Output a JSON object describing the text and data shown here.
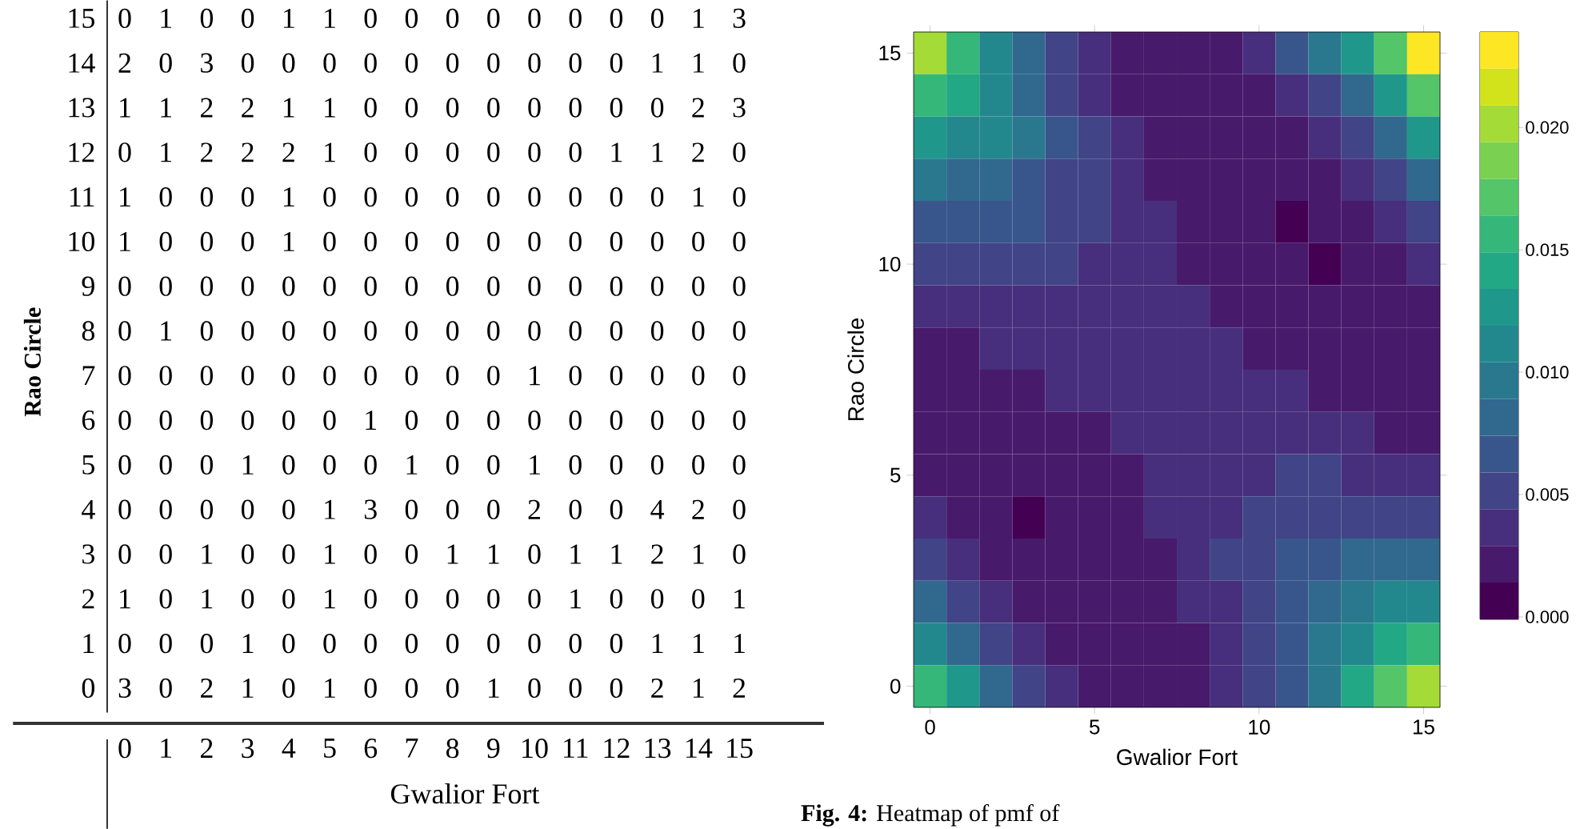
{
  "chart_data": [
    {
      "type": "heatmap",
      "xlabel": "Gwalior Fort",
      "ylabel": "Rao Circle",
      "data_labels": true,
      "categories": [
        "0",
        "1",
        "2",
        "3",
        "4",
        "5",
        "6",
        "7",
        "8",
        "9",
        "10",
        "11",
        "12",
        "13",
        "14",
        "15"
      ],
      "y_categories": [
        "15",
        "14",
        "13",
        "12",
        "11",
        "10",
        "9",
        "8",
        "7",
        "6",
        "5",
        "4",
        "3",
        "2",
        "1",
        "0"
      ],
      "cells": [
        [
          0,
          1,
          0,
          0,
          1,
          1,
          0,
          0,
          0,
          0,
          0,
          0,
          0,
          0,
          1,
          3
        ],
        [
          2,
          0,
          3,
          0,
          0,
          0,
          0,
          0,
          0,
          0,
          0,
          0,
          0,
          1,
          1,
          0
        ],
        [
          1,
          1,
          2,
          2,
          1,
          1,
          0,
          0,
          0,
          0,
          0,
          0,
          0,
          0,
          2,
          3
        ],
        [
          0,
          1,
          2,
          2,
          2,
          1,
          0,
          0,
          0,
          0,
          0,
          0,
          1,
          1,
          2,
          0
        ],
        [
          1,
          0,
          0,
          0,
          1,
          0,
          0,
          0,
          0,
          0,
          0,
          0,
          0,
          0,
          1,
          0
        ],
        [
          1,
          0,
          0,
          0,
          1,
          0,
          0,
          0,
          0,
          0,
          0,
          0,
          0,
          0,
          0,
          0
        ],
        [
          0,
          0,
          0,
          0,
          0,
          0,
          0,
          0,
          0,
          0,
          0,
          0,
          0,
          0,
          0,
          0
        ],
        [
          0,
          1,
          0,
          0,
          0,
          0,
          0,
          0,
          0,
          0,
          0,
          0,
          0,
          0,
          0,
          0
        ],
        [
          0,
          0,
          0,
          0,
          0,
          0,
          0,
          0,
          0,
          0,
          1,
          0,
          0,
          0,
          0,
          0
        ],
        [
          0,
          0,
          0,
          0,
          0,
          0,
          1,
          0,
          0,
          0,
          0,
          0,
          0,
          0,
          0,
          0
        ],
        [
          0,
          0,
          0,
          1,
          0,
          0,
          0,
          1,
          0,
          0,
          1,
          0,
          0,
          0,
          0,
          0
        ],
        [
          0,
          0,
          0,
          0,
          0,
          1,
          3,
          0,
          0,
          0,
          2,
          0,
          0,
          4,
          2,
          0
        ],
        [
          0,
          0,
          1,
          0,
          0,
          1,
          0,
          0,
          1,
          1,
          0,
          1,
          1,
          2,
          1,
          0
        ],
        [
          1,
          0,
          1,
          0,
          0,
          1,
          0,
          0,
          0,
          0,
          0,
          1,
          0,
          0,
          0,
          1
        ],
        [
          0,
          0,
          0,
          1,
          0,
          0,
          0,
          0,
          0,
          0,
          0,
          0,
          0,
          1,
          1,
          1
        ],
        [
          3,
          0,
          2,
          1,
          0,
          1,
          0,
          0,
          0,
          1,
          0,
          0,
          0,
          2,
          1,
          2
        ]
      ]
    },
    {
      "type": "heatmap",
      "xlabel": "Gwalior Fort",
      "ylabel": "Rao Circle",
      "categories": [
        "0",
        null,
        null,
        null,
        null,
        "5",
        null,
        null,
        null,
        null,
        "10",
        null,
        null,
        null,
        null,
        "15"
      ],
      "y_categories": [
        "15",
        null,
        null,
        null,
        null,
        "10",
        null,
        null,
        null,
        null,
        "5",
        null,
        null,
        null,
        null,
        "0"
      ],
      "clim": [
        -0.0001,
        0.0239
      ],
      "cticks": [
        {
          "value": 0,
          "label": "0.000"
        },
        {
          "value": 0.005,
          "label": "0.005"
        },
        {
          "value": 0.01,
          "label": "0.010"
        },
        {
          "value": 0.015,
          "label": "0.015"
        },
        {
          "value": 0.02,
          "label": "0.020"
        }
      ],
      "annotations": [
        "**Fig. 4:** Heatmap of pmf of"
      ],
      "cells": [
        [
          0.0202,
          0.0157,
          0.0112,
          0.0082,
          0.0052,
          0.0037,
          0.0022,
          0.0022,
          0.0022,
          0.0022,
          0.0037,
          0.0067,
          0.0097,
          0.0127,
          0.0172,
          0.0232
        ],
        [
          0.0157,
          0.0142,
          0.0112,
          0.0082,
          0.0052,
          0.0037,
          0.0022,
          0.0022,
          0.0022,
          0.0022,
          0.0022,
          0.0037,
          0.0052,
          0.0082,
          0.0127,
          0.0172
        ],
        [
          0.0127,
          0.0112,
          0.0112,
          0.0097,
          0.0067,
          0.0052,
          0.0037,
          0.0022,
          0.0022,
          0.0022,
          0.0022,
          0.0022,
          0.0037,
          0.0052,
          0.0082,
          0.0127
        ],
        [
          0.0097,
          0.0082,
          0.0082,
          0.0067,
          0.0052,
          0.0052,
          0.0037,
          0.0022,
          0.0022,
          0.0022,
          0.0022,
          0.0022,
          0.0022,
          0.0037,
          0.0052,
          0.0082
        ],
        [
          0.0067,
          0.0067,
          0.0067,
          0.0067,
          0.0052,
          0.0052,
          0.0037,
          0.0037,
          0.0022,
          0.0022,
          0.0022,
          0.0007,
          0.0022,
          0.0022,
          0.0037,
          0.0052
        ],
        [
          0.0052,
          0.0052,
          0.0052,
          0.0052,
          0.0052,
          0.0037,
          0.0037,
          0.0037,
          0.0022,
          0.0022,
          0.0022,
          0.0022,
          0.0007,
          0.0022,
          0.0022,
          0.0037
        ],
        [
          0.0037,
          0.0037,
          0.0037,
          0.0037,
          0.0037,
          0.0037,
          0.0037,
          0.0037,
          0.0037,
          0.0022,
          0.0022,
          0.0022,
          0.0022,
          0.0022,
          0.0022,
          0.0022
        ],
        [
          0.0022,
          0.0022,
          0.0037,
          0.0037,
          0.0037,
          0.0037,
          0.0037,
          0.0037,
          0.0037,
          0.0037,
          0.0022,
          0.0022,
          0.0022,
          0.0022,
          0.0022,
          0.0022
        ],
        [
          0.0022,
          0.0022,
          0.0022,
          0.0022,
          0.0037,
          0.0037,
          0.0037,
          0.0037,
          0.0037,
          0.0037,
          0.0037,
          0.0037,
          0.0022,
          0.0022,
          0.0022,
          0.0022
        ],
        [
          0.0022,
          0.0022,
          0.0022,
          0.0022,
          0.0022,
          0.0022,
          0.0037,
          0.0037,
          0.0037,
          0.0037,
          0.0037,
          0.0037,
          0.0037,
          0.0037,
          0.0022,
          0.0022
        ],
        [
          0.0022,
          0.0022,
          0.0022,
          0.0022,
          0.0022,
          0.0022,
          0.0022,
          0.0037,
          0.0037,
          0.0037,
          0.0037,
          0.0052,
          0.0052,
          0.0037,
          0.0037,
          0.0037
        ],
        [
          0.0037,
          0.0022,
          0.0022,
          0.0007,
          0.0022,
          0.0022,
          0.0022,
          0.0037,
          0.0037,
          0.0037,
          0.0052,
          0.0052,
          0.0052,
          0.0052,
          0.0052,
          0.0052
        ],
        [
          0.0052,
          0.0037,
          0.0022,
          0.0022,
          0.0022,
          0.0022,
          0.0022,
          0.0022,
          0.0037,
          0.0052,
          0.0052,
          0.0067,
          0.0067,
          0.0082,
          0.0082,
          0.0082
        ],
        [
          0.0082,
          0.0052,
          0.0037,
          0.0022,
          0.0022,
          0.0022,
          0.0022,
          0.0022,
          0.0037,
          0.0037,
          0.0052,
          0.0067,
          0.0082,
          0.0097,
          0.0112,
          0.0112
        ],
        [
          0.0112,
          0.0082,
          0.0052,
          0.0037,
          0.0022,
          0.0022,
          0.0022,
          0.0022,
          0.0022,
          0.0037,
          0.0052,
          0.0067,
          0.0097,
          0.0112,
          0.0142,
          0.0157
        ],
        [
          0.0157,
          0.0127,
          0.0082,
          0.0052,
          0.0037,
          0.0022,
          0.0022,
          0.0022,
          0.0022,
          0.0037,
          0.0052,
          0.0067,
          0.0097,
          0.0142,
          0.0172,
          0.0202
        ]
      ]
    }
  ]
}
